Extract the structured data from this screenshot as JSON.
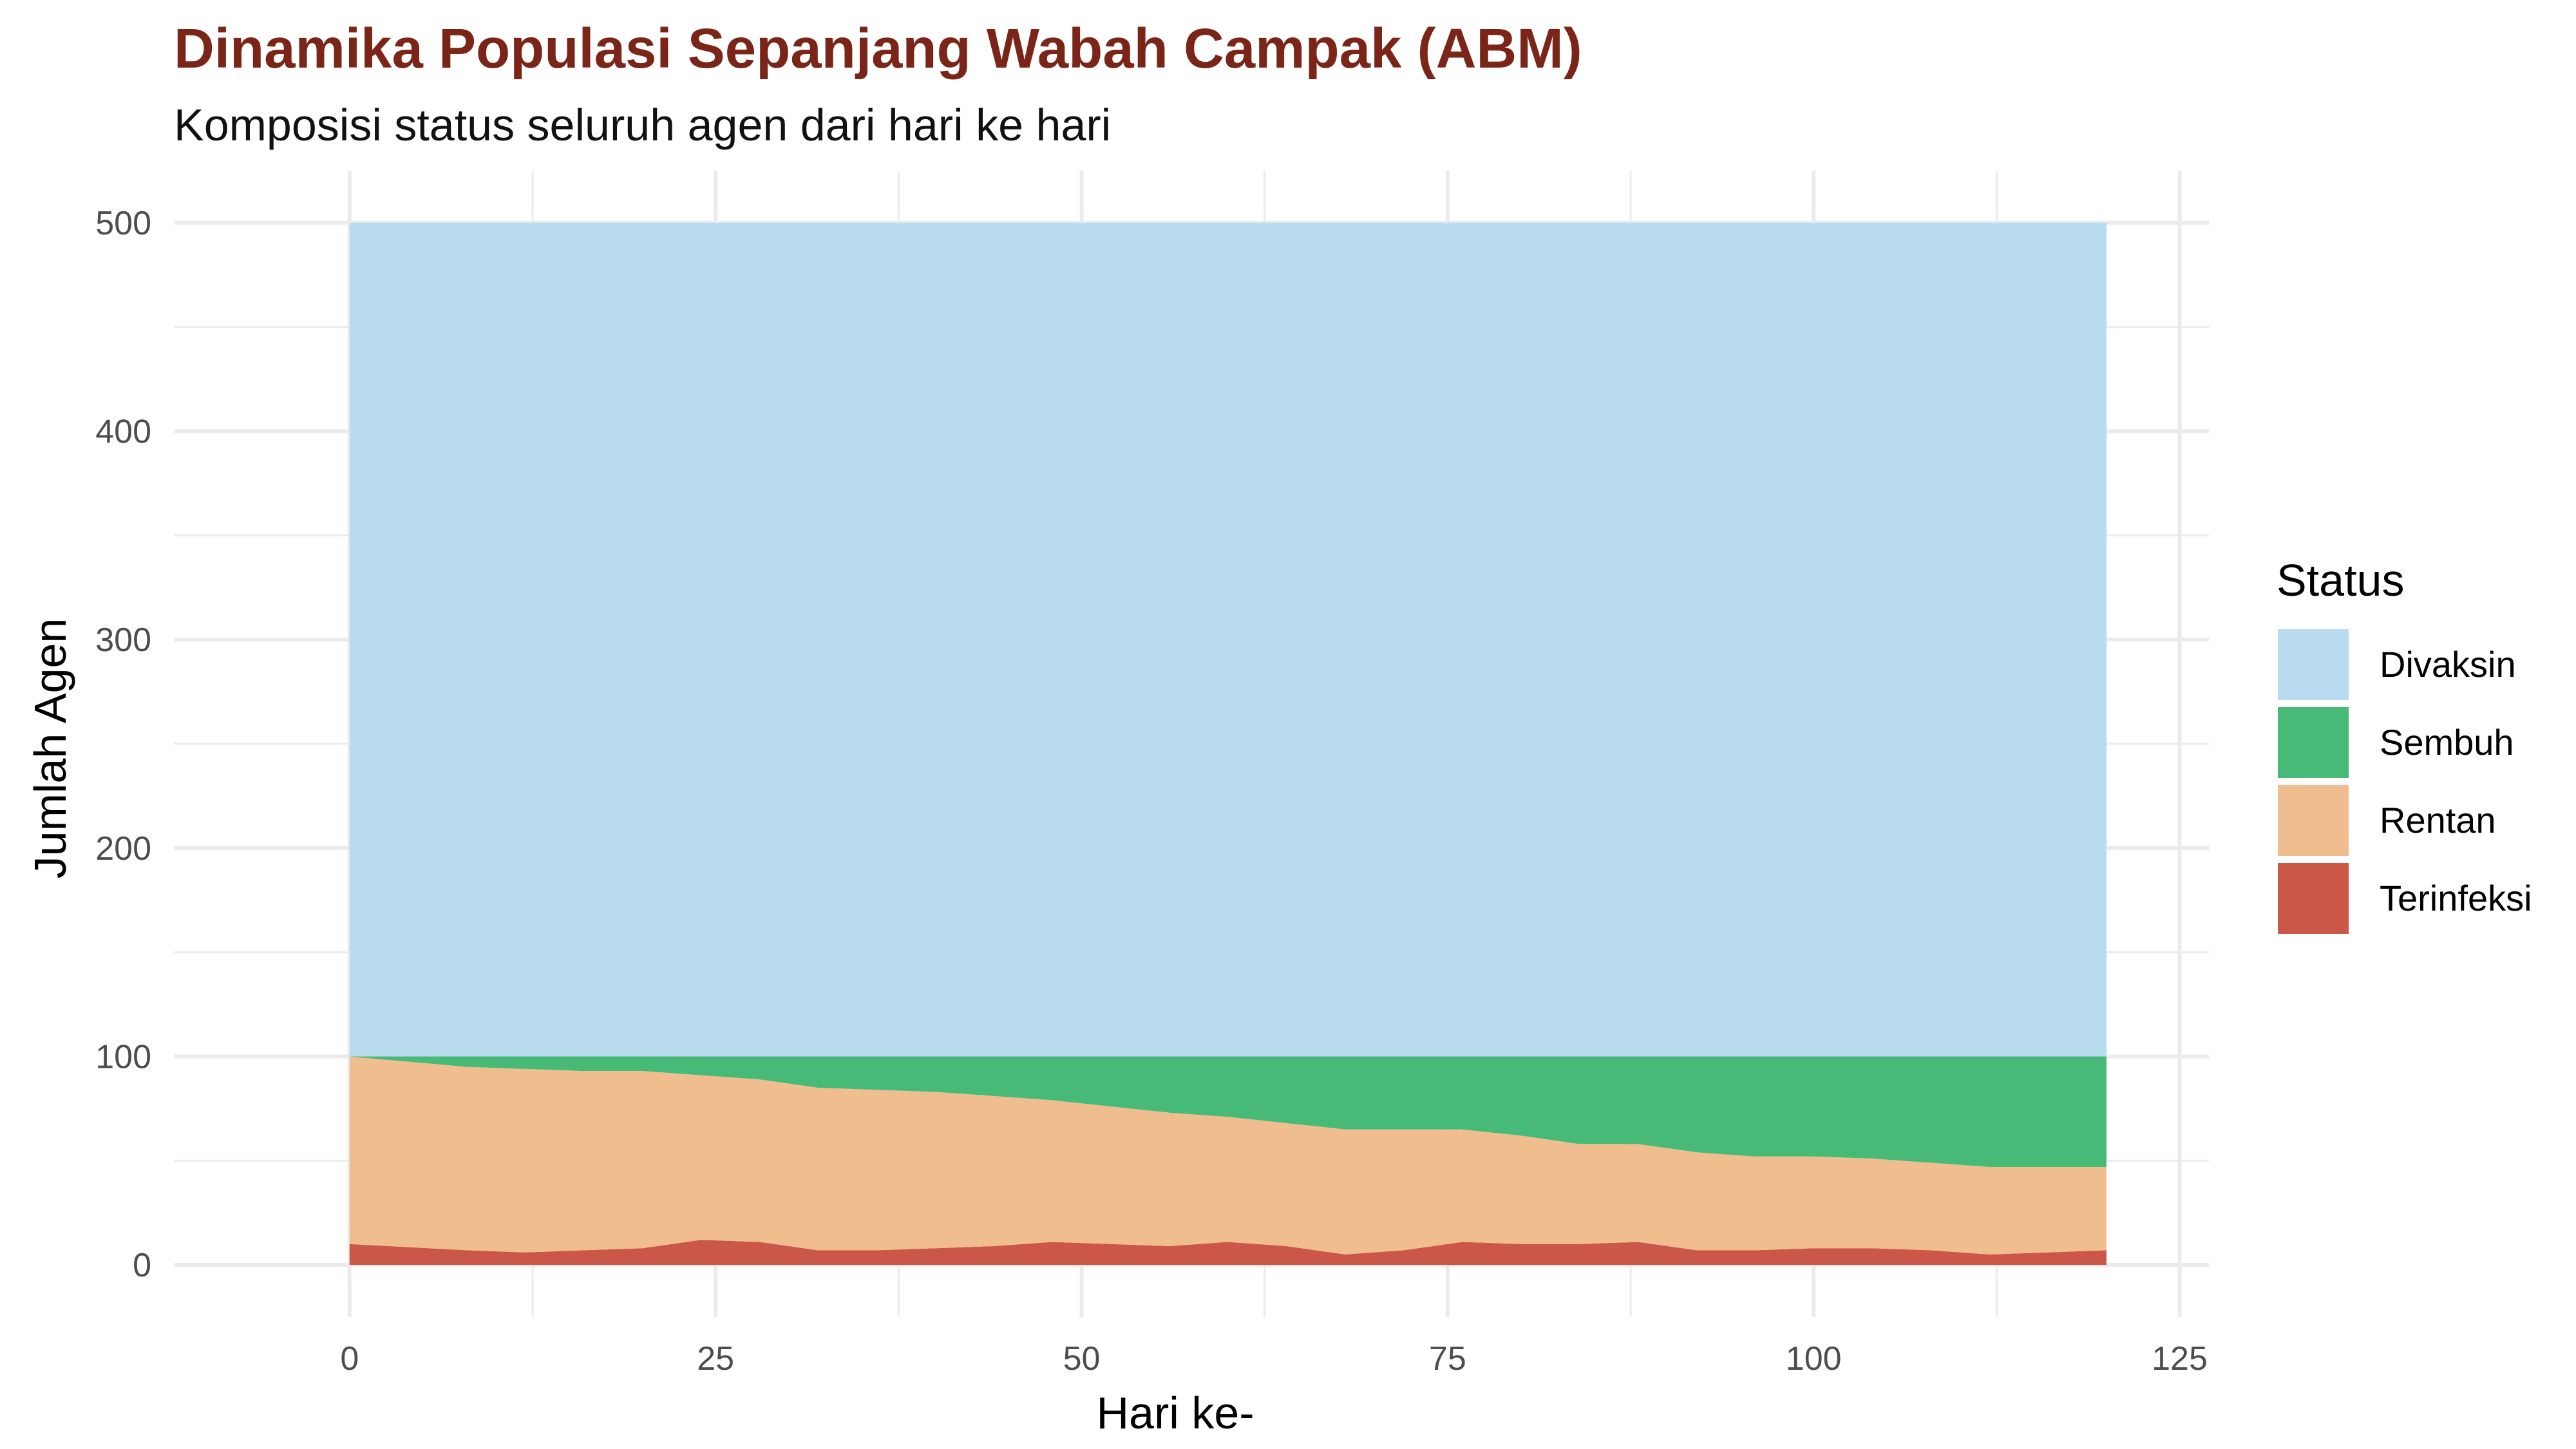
{
  "chart_data": {
    "type": "area",
    "stacked": true,
    "title": "Dinamika Populasi Sepanjang Wabah Campak (ABM)",
    "subtitle": "Komposisi status seluruh agen dari hari ke hari",
    "xlabel": "Hari ke-",
    "ylabel": "Jumlah Agen",
    "xlim": [
      -12,
      127
    ],
    "ylim": [
      -25,
      525
    ],
    "x_ticks": [
      0,
      25,
      50,
      75,
      100,
      125
    ],
    "y_ticks": [
      0,
      100,
      200,
      300,
      400,
      500
    ],
    "grid": true,
    "legend": {
      "title": "Status",
      "position": "right"
    },
    "colors": {
      "title": "#7B2518",
      "Divaksin": "#B9DBF0",
      "Sembuh": "#47BA78",
      "Rentan": "#F0BD8E",
      "Terinfeksi": "#CB5748",
      "grid": "#EBEBEB"
    },
    "x": [
      0,
      8,
      12,
      16,
      20,
      24,
      28,
      32,
      36,
      40,
      44,
      48,
      52,
      56,
      60,
      64,
      68,
      72,
      76,
      80,
      84,
      88,
      92,
      96,
      100,
      104,
      108,
      112,
      116,
      120
    ],
    "series": [
      {
        "name": "Terinfeksi",
        "values": [
          10,
          7,
          6,
          7,
          8,
          12,
          11,
          7,
          7,
          8,
          9,
          11,
          10,
          9,
          11,
          9,
          5,
          7,
          11,
          10,
          10,
          11,
          7,
          7,
          8,
          8,
          7,
          5,
          6,
          7
        ]
      },
      {
        "name": "Rentan",
        "values": [
          90,
          88,
          88,
          86,
          85,
          79,
          78,
          78,
          77,
          75,
          72,
          68,
          66,
          64,
          60,
          59,
          60,
          58,
          54,
          52,
          48,
          47,
          47,
          45,
          44,
          43,
          42,
          42,
          41,
          40
        ]
      },
      {
        "name": "Sembuh",
        "values": [
          0,
          5,
          6,
          7,
          7,
          9,
          11,
          15,
          16,
          17,
          19,
          21,
          24,
          27,
          29,
          32,
          35,
          35,
          35,
          38,
          42,
          42,
          46,
          48,
          48,
          49,
          51,
          53,
          53,
          53
        ]
      },
      {
        "name": "Divaksin",
        "values": [
          400,
          400,
          400,
          400,
          400,
          400,
          400,
          400,
          400,
          400,
          400,
          400,
          400,
          400,
          400,
          400,
          400,
          400,
          400,
          400,
          400,
          400,
          400,
          400,
          400,
          400,
          400,
          400,
          400,
          400
        ]
      }
    ],
    "legend_order": [
      "Divaksin",
      "Sembuh",
      "Rentan",
      "Terinfeksi"
    ]
  }
}
